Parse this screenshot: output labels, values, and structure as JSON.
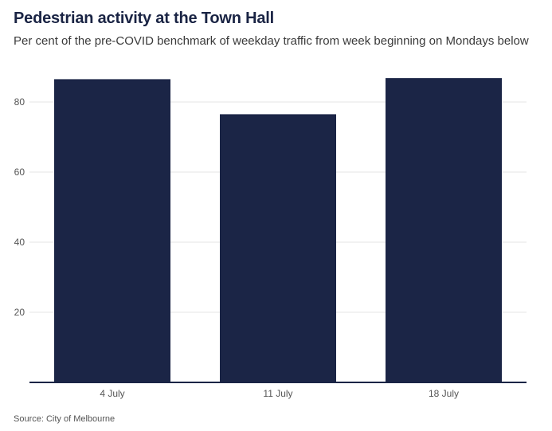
{
  "title": "Pedestrian activity at the Town Hall",
  "subtitle": "Per cent of the pre-COVID benchmark of weekday traffic from week beginning on Mondays below",
  "source": "Source: City of Melbourne",
  "colors": {
    "bar": "#1b2546",
    "grid": "#e6e6e6",
    "axis": "#1b2546"
  },
  "chart_data": {
    "type": "bar",
    "categories": [
      "4 July",
      "11 July",
      "18 July"
    ],
    "values": [
      86.5,
      76.5,
      86.8
    ],
    "title": "Pedestrian activity at the Town Hall",
    "xlabel": "",
    "ylabel": "",
    "ylim": [
      0,
      90
    ],
    "yticks": [
      20,
      40,
      60,
      80
    ],
    "grid": true,
    "legend": "none"
  }
}
